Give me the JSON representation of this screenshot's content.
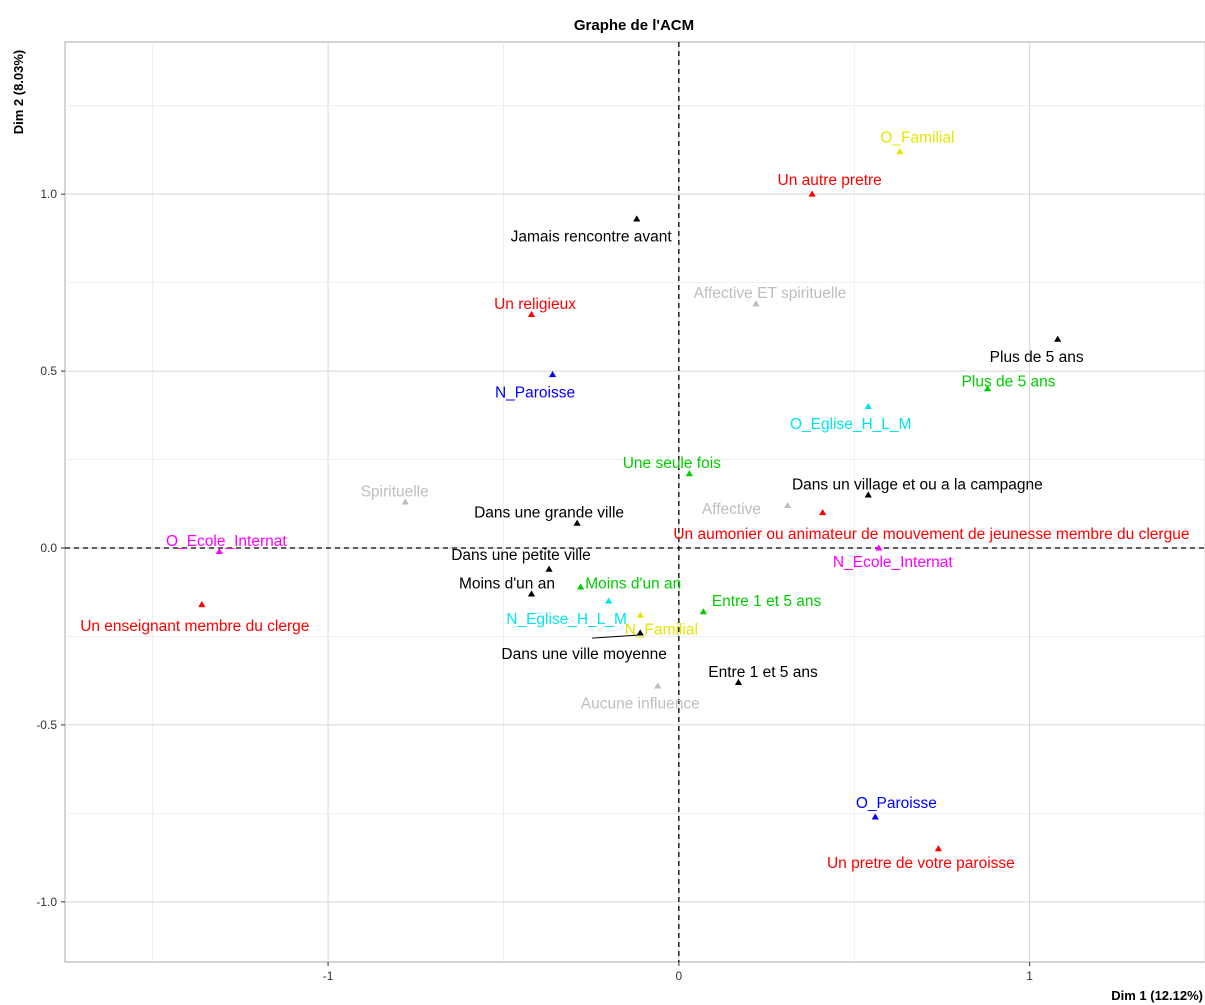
{
  "chart_data": {
    "type": "scatter",
    "title": "Graphe de l'ACM",
    "xlabel": "Dim 1 (12.12%)",
    "ylabel": "Dim 2 (8.03%)",
    "xlim": [
      -1.75,
      1.5
    ],
    "ylim": [
      -1.17,
      1.43
    ],
    "x_ticks": [
      -1,
      0,
      1
    ],
    "x_tick_labels": [
      "-1",
      "0",
      "1"
    ],
    "y_ticks": [
      -1.0,
      -0.5,
      0.0,
      0.5,
      1.0
    ],
    "y_tick_labels": [
      "-1.0",
      "-0.5",
      "0.0",
      "0.5",
      "1.0"
    ],
    "grid": true,
    "reference_lines": {
      "x": 0,
      "y": 0,
      "style": "dashed"
    },
    "colors": {
      "black": "#000000",
      "red": "#ff0000",
      "green": "#00cd00",
      "blue": "#0000ff",
      "cyan": "#00e5ee",
      "magenta": "#ff00ff",
      "yellow": "#e5e500",
      "gray": "#bebebe"
    },
    "points": [
      {
        "label": "O_Familial",
        "x": 0.63,
        "y": 1.12,
        "color": "yellow",
        "lx": 0.68,
        "ly": 1.16
      },
      {
        "label": "Un autre pretre",
        "x": 0.38,
        "y": 1.0,
        "color": "red",
        "lx": 0.43,
        "ly": 1.04
      },
      {
        "label": "Jamais rencontre avant",
        "x": -0.12,
        "y": 0.93,
        "color": "black",
        "lx": -0.25,
        "ly": 0.88
      },
      {
        "label": "Affective ET spirituelle",
        "x": 0.22,
        "y": 0.69,
        "color": "gray",
        "lx": 0.26,
        "ly": 0.72
      },
      {
        "label": "Un religieux",
        "x": -0.42,
        "y": 0.66,
        "color": "red",
        "lx": -0.41,
        "ly": 0.69
      },
      {
        "label": "Plus de 5 ans",
        "x": 1.08,
        "y": 0.59,
        "color": "black",
        "lx": 1.02,
        "ly": 0.54
      },
      {
        "label": "N_Paroisse",
        "x": -0.36,
        "y": 0.49,
        "color": "blue",
        "lx": -0.41,
        "ly": 0.44
      },
      {
        "label": "Plus de 5 ans",
        "x": 0.88,
        "y": 0.45,
        "color": "green",
        "lx": 0.94,
        "ly": 0.47
      },
      {
        "label": "O_Eglise_H_L_M",
        "x": 0.54,
        "y": 0.4,
        "color": "cyan",
        "lx": 0.49,
        "ly": 0.35
      },
      {
        "label": "Une seule fois",
        "x": 0.03,
        "y": 0.21,
        "color": "green",
        "lx": -0.02,
        "ly": 0.24
      },
      {
        "label": "Dans un village et ou a la campagne",
        "x": 0.54,
        "y": 0.15,
        "color": "black",
        "lx": 0.68,
        "ly": 0.18
      },
      {
        "label": "Spirituelle",
        "x": -0.78,
        "y": 0.13,
        "color": "gray",
        "lx": -0.81,
        "ly": 0.16
      },
      {
        "label": "Affective",
        "x": 0.31,
        "y": 0.12,
        "color": "gray",
        "lx": 0.15,
        "ly": 0.11
      },
      {
        "label": "Dans une grande ville",
        "x": -0.29,
        "y": 0.07,
        "color": "black",
        "lx": -0.37,
        "ly": 0.1
      },
      {
        "label": "Un aumonier ou animateur de mouvement de jeunesse membre du clergue",
        "x": 0.41,
        "y": 0.1,
        "color": "red",
        "lx": 0.72,
        "ly": 0.04
      },
      {
        "label": "O_Ecole_Internat",
        "x": -1.31,
        "y": -0.01,
        "color": "magenta",
        "lx": -1.29,
        "ly": 0.02
      },
      {
        "label": "N_Ecole_Internat",
        "x": 0.57,
        "y": 0.0,
        "color": "magenta",
        "lx": 0.61,
        "ly": -0.04
      },
      {
        "label": "Dans une petite ville",
        "x": -0.37,
        "y": -0.06,
        "color": "black",
        "lx": -0.45,
        "ly": -0.02
      },
      {
        "label": "Moins d'un an",
        "x": -0.42,
        "y": -0.13,
        "color": "black",
        "lx": -0.49,
        "ly": -0.1
      },
      {
        "label": "Moins d'un an",
        "x": -0.28,
        "y": -0.11,
        "color": "green",
        "lx": -0.13,
        "ly": -0.1
      },
      {
        "label": "Un enseignant membre du clerge",
        "x": -1.36,
        "y": -0.16,
        "color": "red",
        "lx": -1.38,
        "ly": -0.22
      },
      {
        "label": "N_Eglise_H_L_M",
        "x": -0.2,
        "y": -0.15,
        "color": "cyan",
        "lx": -0.32,
        "ly": -0.2
      },
      {
        "label": "Entre 1 et 5 ans",
        "x": 0.07,
        "y": -0.18,
        "color": "green",
        "lx": 0.25,
        "ly": -0.15
      },
      {
        "label": "N_Familial",
        "x": -0.11,
        "y": -0.19,
        "color": "yellow",
        "lx": -0.05,
        "ly": -0.23
      },
      {
        "label": "Dans une ville moyenne",
        "x": -0.11,
        "y": -0.24,
        "color": "black",
        "lx": -0.27,
        "ly": -0.3,
        "leader": true
      },
      {
        "label": "Entre 1 et 5 ans",
        "x": 0.17,
        "y": -0.38,
        "color": "black",
        "lx": 0.24,
        "ly": -0.35
      },
      {
        "label": "Aucune influence",
        "x": -0.06,
        "y": -0.39,
        "color": "gray",
        "lx": -0.11,
        "ly": -0.44
      },
      {
        "label": "O_Paroisse",
        "x": 0.56,
        "y": -0.76,
        "color": "blue",
        "lx": 0.62,
        "ly": -0.72
      },
      {
        "label": "Un pretre de votre paroisse",
        "x": 0.74,
        "y": -0.85,
        "color": "red",
        "lx": 0.69,
        "ly": -0.89
      }
    ]
  }
}
